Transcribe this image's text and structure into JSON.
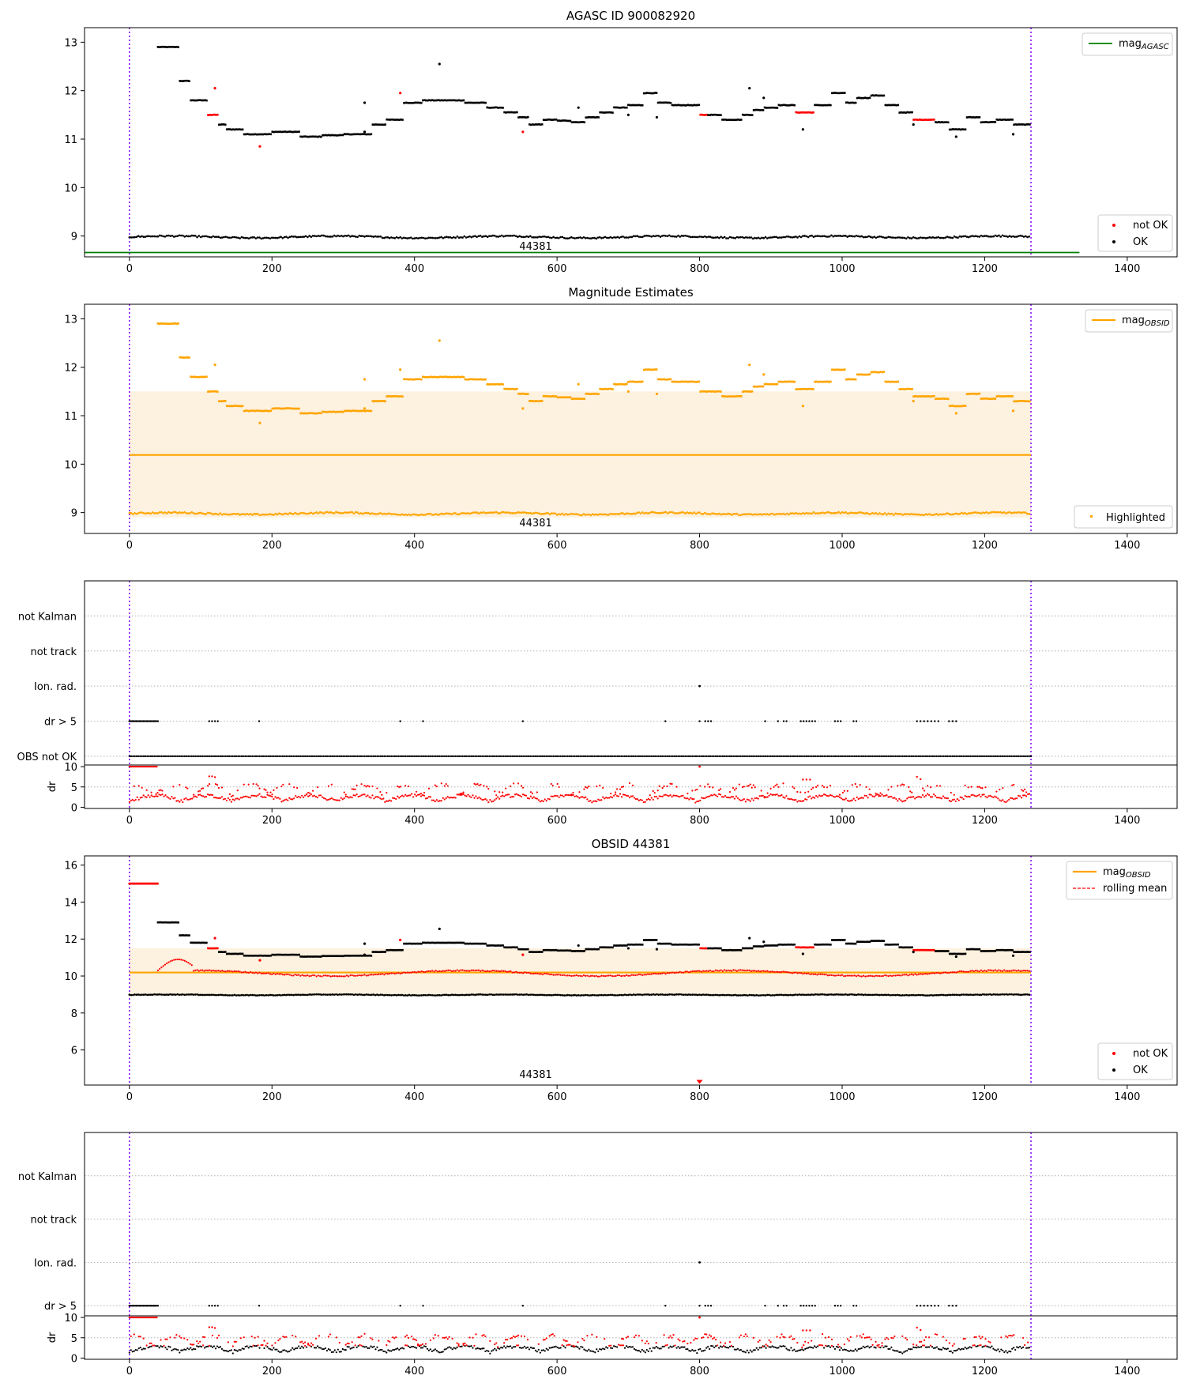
{
  "figure": {
    "title_top": "AGASC ID 900082920",
    "title_mag": "Magnitude Estimates",
    "title_obsid": "OBSID 44381",
    "obsid_label": "44381"
  },
  "colors": {
    "ok": "#000000",
    "not_ok": "#ff0000",
    "mag_agasc": "#008000",
    "mag_obsid": "#ffa500",
    "band": "#fdf1df",
    "vline": "#8000ff",
    "grid": "#b0b0b0"
  },
  "chart_data": [
    {
      "id": "panel1",
      "type": "scatter",
      "title": "AGASC ID 900082920",
      "xlim": [
        -63,
        1470
      ],
      "ylim": [
        8.57,
        13.3
      ],
      "xticks": [
        0,
        200,
        400,
        600,
        800,
        1000,
        1200,
        1400
      ],
      "yticks": [
        9,
        10,
        11,
        12,
        13
      ],
      "x_range": [
        0,
        1265
      ],
      "vlines": [
        0,
        1265
      ],
      "mag_agasc": 8.66,
      "mag_agasc_range": [
        -63,
        1333
      ],
      "obsid_text": "44381",
      "legend_upper": [
        "mag_AGASC"
      ],
      "legend_lower": [
        "not OK",
        "OK"
      ],
      "legend_upper_loc": "upper right",
      "legend_lower_loc": "lower right"
    },
    {
      "id": "panel2",
      "type": "scatter",
      "title": "Magnitude Estimates",
      "xlim": [
        -63,
        1470
      ],
      "ylim": [
        8.57,
        13.3
      ],
      "xticks": [
        0,
        200,
        400,
        600,
        800,
        1000,
        1200,
        1400
      ],
      "yticks": [
        9,
        10,
        11,
        12,
        13
      ],
      "mag_obsid": 10.19,
      "band": [
        8.9,
        11.5
      ],
      "vlines": [
        0,
        1265
      ],
      "obsid_text": "44381",
      "legend_upper": [
        "mag_OBSID"
      ],
      "legend_lower": [
        "Highlighted"
      ],
      "legend_upper_loc": "upper right",
      "legend_lower_loc": "lower right"
    },
    {
      "id": "panel3",
      "type": "scatter",
      "xlim": [
        -63,
        1470
      ],
      "xticks": [
        0,
        200,
        400,
        600,
        800,
        1000,
        1200,
        1400
      ],
      "flags": [
        "not Kalman",
        "not track",
        "Ion. rad.",
        "dr > 5",
        "OBS not OK"
      ],
      "dr_label": "dr",
      "dr_yticks": [
        0,
        5,
        10
      ],
      "dr_ylim": [
        -0.3,
        10.4
      ],
      "vlines": [
        0,
        1265
      ]
    },
    {
      "id": "panel4",
      "type": "scatter",
      "title": "OBSID 44381",
      "xlim": [
        -63,
        1470
      ],
      "ylim": [
        4.1,
        16.5
      ],
      "xticks": [
        0,
        200,
        400,
        600,
        800,
        1000,
        1200,
        1400
      ],
      "yticks": [
        6,
        8,
        10,
        12,
        14,
        16
      ],
      "mag_obsid": 10.19,
      "band": [
        8.9,
        11.5
      ],
      "vlines": [
        0,
        1265
      ],
      "obsid_text": "44381",
      "legend_upper": [
        "mag_OBSID",
        "rolling mean"
      ],
      "legend_lower": [
        "not OK",
        "OK"
      ],
      "legend_upper_loc": "upper right",
      "legend_lower_loc": "lower right"
    },
    {
      "id": "panel5",
      "type": "scatter",
      "xlim": [
        -63,
        1470
      ],
      "xticks": [
        0,
        200,
        400,
        600,
        800,
        1000,
        1200,
        1400
      ],
      "flags": [
        "not Kalman",
        "not track",
        "Ion. rad.",
        "dr > 5"
      ],
      "dr_label": "dr",
      "dr_yticks": [
        0,
        5,
        10
      ],
      "dr_ylim": [
        -0.3,
        10.4
      ],
      "vlines": [
        0,
        1265
      ]
    }
  ],
  "series_description": {
    "mag_steps": [
      [
        40,
        70,
        12.9
      ],
      [
        70,
        85,
        12.2
      ],
      [
        85,
        110,
        11.8
      ],
      [
        110,
        125,
        11.5
      ],
      [
        125,
        135,
        11.3
      ],
      [
        135,
        160,
        11.2
      ],
      [
        160,
        175,
        11.1
      ],
      [
        175,
        200,
        11.1
      ],
      [
        200,
        240,
        11.15
      ],
      [
        240,
        270,
        11.05
      ],
      [
        270,
        300,
        11.08
      ],
      [
        300,
        340,
        11.1
      ],
      [
        340,
        360,
        11.3
      ],
      [
        360,
        385,
        11.4
      ],
      [
        385,
        410,
        11.75
      ],
      [
        410,
        440,
        11.8
      ],
      [
        440,
        470,
        11.8
      ],
      [
        470,
        500,
        11.75
      ],
      [
        500,
        525,
        11.65
      ],
      [
        525,
        545,
        11.55
      ],
      [
        545,
        560,
        11.45
      ],
      [
        560,
        580,
        11.3
      ],
      [
        580,
        600,
        11.4
      ],
      [
        600,
        620,
        11.38
      ],
      [
        620,
        640,
        11.35
      ],
      [
        640,
        660,
        11.45
      ],
      [
        660,
        680,
        11.55
      ],
      [
        680,
        700,
        11.65
      ],
      [
        700,
        720,
        11.7
      ],
      [
        720,
        740,
        11.95
      ],
      [
        740,
        760,
        11.75
      ],
      [
        760,
        800,
        11.7
      ],
      [
        800,
        830,
        11.5
      ],
      [
        830,
        860,
        11.4
      ],
      [
        860,
        875,
        11.5
      ],
      [
        875,
        890,
        11.6
      ],
      [
        890,
        910,
        11.65
      ],
      [
        910,
        935,
        11.7
      ],
      [
        935,
        960,
        11.55
      ],
      [
        960,
        985,
        11.7
      ],
      [
        985,
        1005,
        11.95
      ],
      [
        1005,
        1020,
        11.75
      ],
      [
        1020,
        1040,
        11.85
      ],
      [
        1040,
        1060,
        11.9
      ],
      [
        1060,
        1080,
        11.7
      ],
      [
        1080,
        1100,
        11.55
      ],
      [
        1100,
        1130,
        11.4
      ],
      [
        1130,
        1150,
        11.35
      ],
      [
        1150,
        1175,
        11.2
      ],
      [
        1175,
        1195,
        11.45
      ],
      [
        1195,
        1215,
        11.35
      ],
      [
        1215,
        1240,
        11.4
      ],
      [
        1240,
        1265,
        11.3
      ]
    ],
    "faint_level": 8.98,
    "dr_gt5_x": [
      0,
      5,
      10,
      15,
      20,
      25,
      30,
      35,
      40,
      112,
      116,
      120,
      124,
      182,
      380,
      412,
      552,
      752,
      800,
      808,
      812,
      816,
      892,
      910,
      918,
      922,
      942,
      946,
      950,
      954,
      958,
      962,
      990,
      994,
      998,
      1016,
      1020,
      1105,
      1110,
      1115,
      1120,
      1125,
      1130,
      1135,
      1150,
      1155,
      1160
    ],
    "ion_rad_x": [
      800
    ],
    "not_ok_ranges": [
      [
        110,
        125
      ],
      [
        800,
        812
      ],
      [
        935,
        960
      ],
      [
        1100,
        1130
      ]
    ]
  }
}
